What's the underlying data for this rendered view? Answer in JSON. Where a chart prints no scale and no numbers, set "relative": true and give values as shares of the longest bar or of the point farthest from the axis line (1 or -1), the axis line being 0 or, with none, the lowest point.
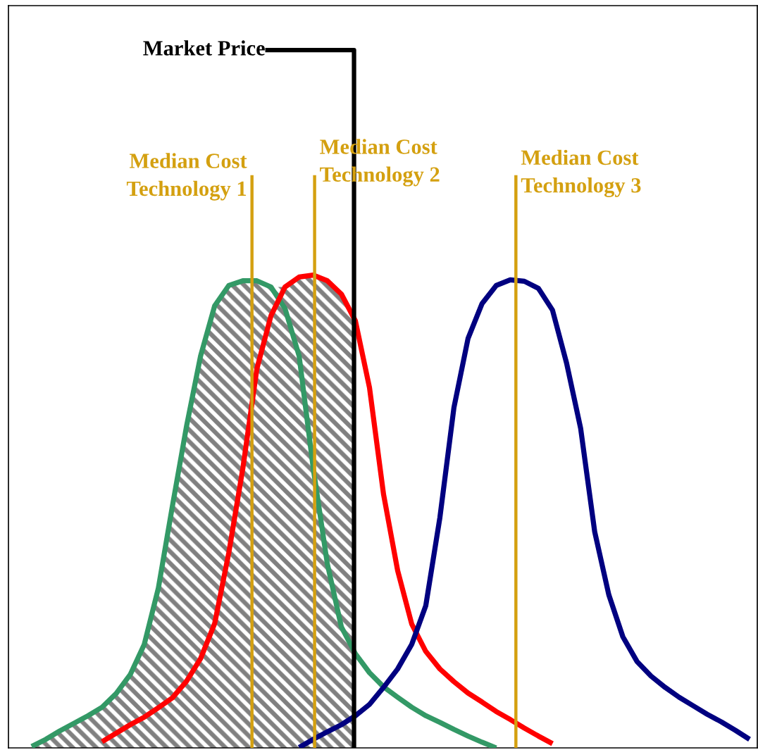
{
  "chart_data": {
    "type": "line",
    "relative": true,
    "categories": [
      null,
      null,
      null,
      null,
      null,
      null,
      null,
      null,
      null,
      null,
      null,
      null,
      null,
      null,
      null,
      null,
      null,
      null,
      null,
      null,
      null,
      null,
      null,
      null,
      null,
      null,
      null,
      null,
      null,
      null,
      null,
      null,
      null,
      null,
      null,
      null,
      null,
      null,
      null,
      null,
      null,
      null,
      null,
      null,
      null,
      null,
      null,
      null,
      null,
      null,
      null,
      null
    ],
    "series": [
      {
        "type": "area",
        "color": "#808080",
        "values": [
          0.003,
          0.018,
          0.036,
          0.052,
          0.068,
          0.086,
          0.115,
          0.155,
          0.219,
          0.338,
          0.512,
          0.68,
          0.829,
          0.935,
          0.978,
          0.988,
          0.988,
          0.975,
          0.975,
          0.996,
          1.0,
          0.988,
          0.96,
          0.903,
          null,
          null,
          null,
          null,
          null,
          null,
          null,
          null,
          null,
          null,
          null,
          null,
          null,
          null,
          null,
          null,
          null,
          null,
          null,
          null,
          null,
          null,
          null,
          null,
          null,
          null,
          null,
          null
        ]
      },
      {
        "color": "#339966",
        "values": [
          0.003,
          0.018,
          0.036,
          0.052,
          0.068,
          0.086,
          0.115,
          0.155,
          0.219,
          0.338,
          0.512,
          0.68,
          0.829,
          0.935,
          0.978,
          0.988,
          0.988,
          0.975,
          0.929,
          0.829,
          0.592,
          0.39,
          0.256,
          0.199,
          0.159,
          0.129,
          0.107,
          0.086,
          0.068,
          0.054,
          0.039,
          0.025,
          0.012,
          0.0,
          null,
          null,
          null,
          null,
          null,
          null,
          null,
          null,
          null,
          null,
          null,
          null,
          null,
          null,
          null,
          null,
          null,
          null
        ]
      },
      {
        "color": "#ff0000",
        "values": [
          null,
          null,
          null,
          null,
          null,
          0.013,
          0.031,
          0.049,
          0.065,
          0.085,
          0.106,
          0.141,
          0.189,
          0.263,
          0.412,
          0.591,
          0.802,
          0.914,
          0.975,
          0.996,
          1.0,
          0.988,
          0.96,
          0.903,
          0.762,
          0.536,
          0.375,
          0.262,
          0.204,
          0.167,
          0.14,
          0.116,
          0.097,
          0.077,
          0.06,
          0.042,
          0.025,
          0.009,
          null,
          null,
          null,
          null,
          null,
          null,
          null,
          null,
          null,
          null,
          null,
          null,
          null,
          null
        ]
      },
      {
        "color": "#000080",
        "values": [
          null,
          null,
          null,
          null,
          null,
          null,
          null,
          null,
          null,
          null,
          null,
          null,
          null,
          null,
          null,
          null,
          null,
          null,
          null,
          0.001,
          0.018,
          0.034,
          0.049,
          0.068,
          0.092,
          0.128,
          0.167,
          0.219,
          0.301,
          0.487,
          0.72,
          0.866,
          0.94,
          0.978,
          0.99,
          0.987,
          0.972,
          0.926,
          0.814,
          0.676,
          0.457,
          0.324,
          0.235,
          0.183,
          0.152,
          0.128,
          0.107,
          0.089,
          0.071,
          0.055,
          0.037,
          0.018
        ]
      }
    ],
    "annotations": [
      "Market Price",
      "Median Cost\nTechnology 1",
      "Median Cost\nTechnology 2",
      "Median Cost\nTechnology 3"
    ]
  }
}
